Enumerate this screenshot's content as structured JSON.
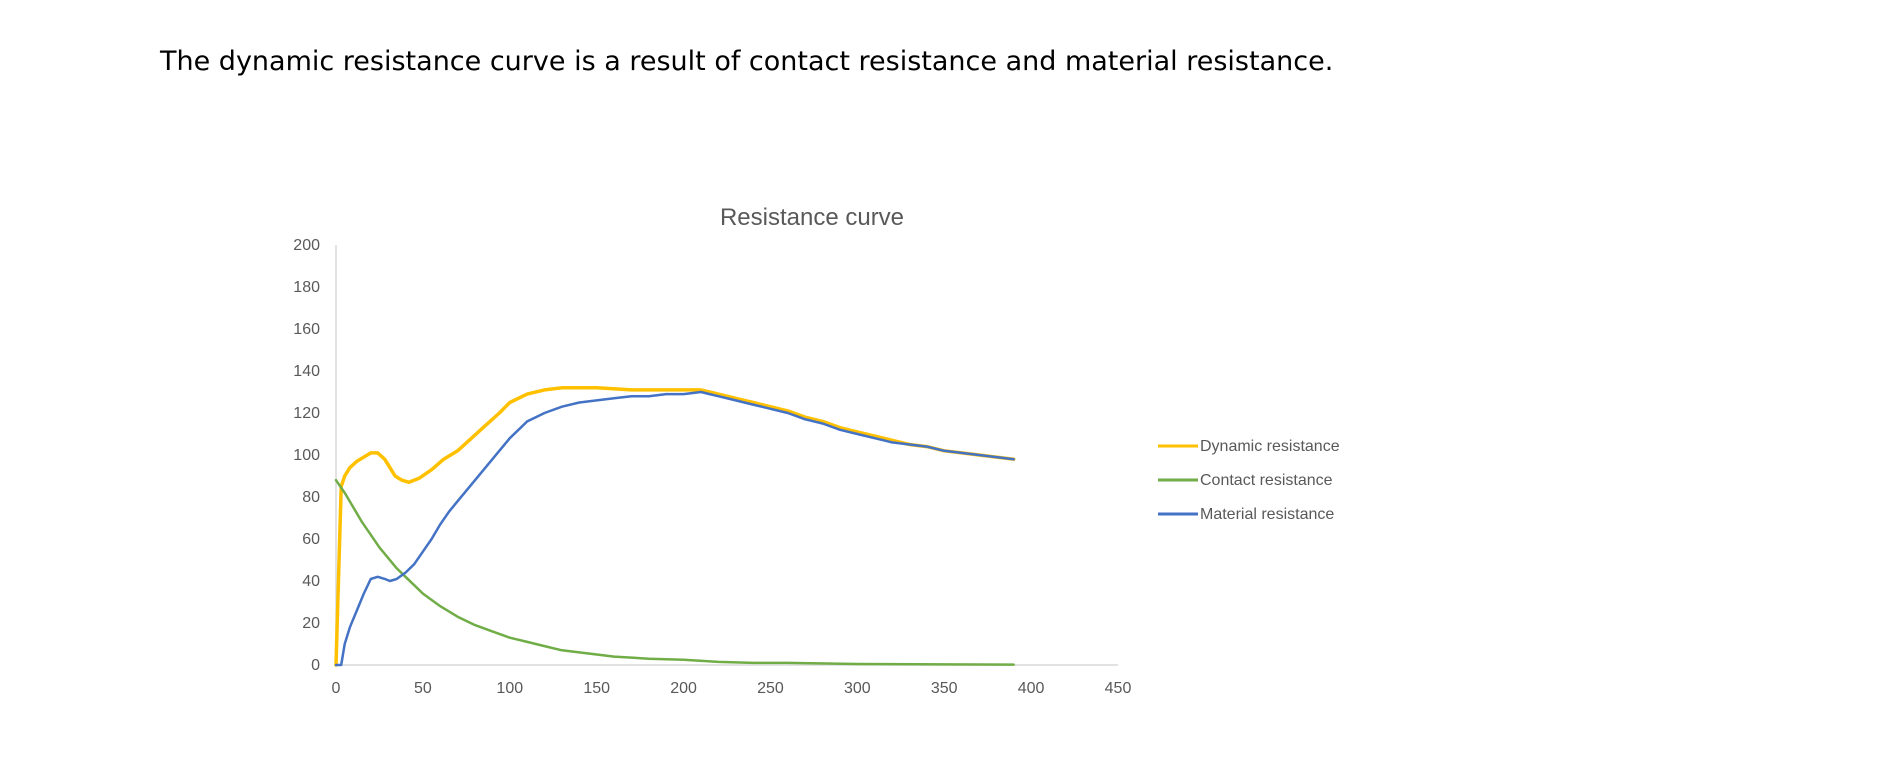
{
  "caption": "The dynamic resistance curve is a result of contact resistance and material resistance.",
  "chart_data": {
    "type": "line",
    "title": "Resistance curve",
    "xlabel": "",
    "ylabel": "",
    "xlim": [
      0,
      450
    ],
    "ylim": [
      0,
      200
    ],
    "x_ticks": [
      0,
      50,
      100,
      150,
      200,
      250,
      300,
      350,
      400,
      450
    ],
    "y_ticks": [
      0,
      20,
      40,
      60,
      80,
      100,
      120,
      140,
      160,
      180,
      200
    ],
    "grid": false,
    "legend_position": "right",
    "series": [
      {
        "name": "Dynamic resistance",
        "color": "#FFC000",
        "points": [
          [
            0,
            0
          ],
          [
            3,
            85
          ],
          [
            5,
            90
          ],
          [
            8,
            94
          ],
          [
            12,
            97
          ],
          [
            16,
            99
          ],
          [
            20,
            101
          ],
          [
            24,
            101
          ],
          [
            28,
            98
          ],
          [
            31,
            94
          ],
          [
            34,
            90
          ],
          [
            38,
            88
          ],
          [
            42,
            87
          ],
          [
            48,
            89
          ],
          [
            55,
            93
          ],
          [
            62,
            98
          ],
          [
            70,
            102
          ],
          [
            78,
            108
          ],
          [
            86,
            114
          ],
          [
            94,
            120
          ],
          [
            100,
            125
          ],
          [
            110,
            129
          ],
          [
            120,
            131
          ],
          [
            130,
            132
          ],
          [
            150,
            132
          ],
          [
            170,
            131
          ],
          [
            190,
            131
          ],
          [
            200,
            131
          ],
          [
            210,
            131
          ],
          [
            220,
            129
          ],
          [
            230,
            127
          ],
          [
            240,
            125
          ],
          [
            250,
            123
          ],
          [
            260,
            121
          ],
          [
            270,
            118
          ],
          [
            280,
            116
          ],
          [
            290,
            113
          ],
          [
            300,
            111
          ],
          [
            310,
            109
          ],
          [
            320,
            107
          ],
          [
            330,
            105
          ],
          [
            340,
            104
          ],
          [
            350,
            102
          ],
          [
            360,
            101
          ],
          [
            370,
            100
          ],
          [
            380,
            99
          ],
          [
            390,
            98
          ]
        ]
      },
      {
        "name": "Contact resistance",
        "color": "#70AD47",
        "points": [
          [
            0,
            88
          ],
          [
            5,
            82
          ],
          [
            10,
            75
          ],
          [
            15,
            68
          ],
          [
            20,
            62
          ],
          [
            25,
            56
          ],
          [
            30,
            51
          ],
          [
            35,
            46
          ],
          [
            40,
            42
          ],
          [
            45,
            38
          ],
          [
            50,
            34
          ],
          [
            60,
            28
          ],
          [
            70,
            23
          ],
          [
            80,
            19
          ],
          [
            90,
            16
          ],
          [
            100,
            13
          ],
          [
            110,
            11
          ],
          [
            120,
            9
          ],
          [
            130,
            7
          ],
          [
            140,
            6
          ],
          [
            150,
            5
          ],
          [
            160,
            4
          ],
          [
            170,
            3.5
          ],
          [
            180,
            3
          ],
          [
            200,
            2.5
          ],
          [
            220,
            1.5
          ],
          [
            240,
            1
          ],
          [
            260,
            1
          ],
          [
            300,
            0.5
          ],
          [
            350,
            0.3
          ],
          [
            390,
            0.2
          ]
        ]
      },
      {
        "name": "Material resistance",
        "color": "#4472C4",
        "points": [
          [
            0,
            0
          ],
          [
            3,
            0
          ],
          [
            5,
            10
          ],
          [
            8,
            18
          ],
          [
            12,
            26
          ],
          [
            16,
            34
          ],
          [
            20,
            41
          ],
          [
            24,
            42
          ],
          [
            28,
            41
          ],
          [
            31,
            40
          ],
          [
            35,
            41
          ],
          [
            40,
            44
          ],
          [
            45,
            48
          ],
          [
            50,
            54
          ],
          [
            55,
            60
          ],
          [
            60,
            67
          ],
          [
            65,
            73
          ],
          [
            70,
            78
          ],
          [
            75,
            83
          ],
          [
            80,
            88
          ],
          [
            85,
            93
          ],
          [
            90,
            98
          ],
          [
            95,
            103
          ],
          [
            100,
            108
          ],
          [
            105,
            112
          ],
          [
            110,
            116
          ],
          [
            115,
            118
          ],
          [
            120,
            120
          ],
          [
            130,
            123
          ],
          [
            140,
            125
          ],
          [
            150,
            126
          ],
          [
            160,
            127
          ],
          [
            170,
            128
          ],
          [
            180,
            128
          ],
          [
            190,
            129
          ],
          [
            200,
            129
          ],
          [
            210,
            130
          ],
          [
            215,
            129
          ],
          [
            220,
            128
          ],
          [
            230,
            126
          ],
          [
            240,
            124
          ],
          [
            250,
            122
          ],
          [
            260,
            120
          ],
          [
            270,
            117
          ],
          [
            280,
            115
          ],
          [
            290,
            112
          ],
          [
            300,
            110
          ],
          [
            310,
            108
          ],
          [
            320,
            106
          ],
          [
            330,
            105
          ],
          [
            340,
            104
          ],
          [
            350,
            102
          ],
          [
            360,
            101
          ],
          [
            370,
            100
          ],
          [
            380,
            99
          ],
          [
            390,
            98
          ]
        ]
      }
    ]
  }
}
